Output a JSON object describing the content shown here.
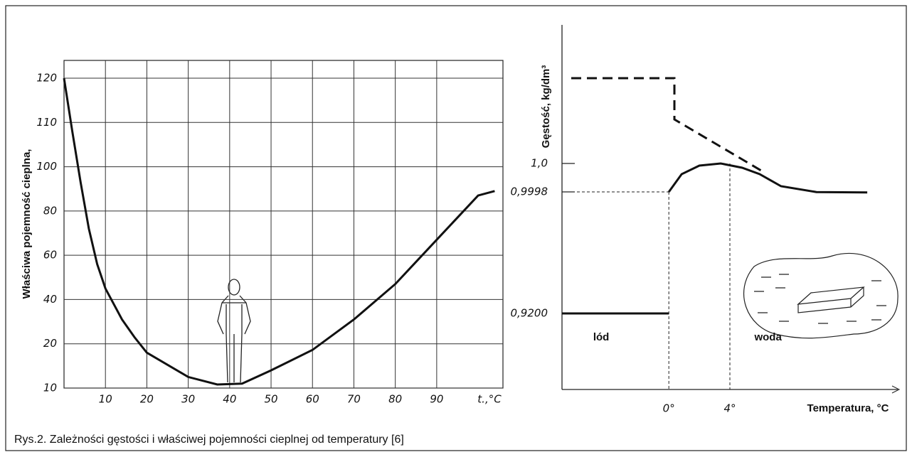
{
  "caption": "Rys.2. Zależności gęstości i właściwej pojemności cieplnej od temperatury [6]",
  "chart_data": [
    {
      "type": "line",
      "ylabel": "Właściwa pojemność cieplna,",
      "xlabel": "t.,°C",
      "x": [
        0,
        1,
        2,
        4,
        6,
        8,
        10,
        14,
        17,
        20,
        30,
        37,
        43,
        50,
        60,
        70,
        80,
        90,
        100,
        104
      ],
      "values": [
        120,
        114,
        108,
        93,
        72,
        56,
        45,
        31,
        23,
        18,
        12.5,
        10.8,
        11,
        14,
        18.6,
        31,
        47,
        67,
        87,
        89
      ],
      "color": "#111111",
      "xlim": [
        0,
        106
      ],
      "ylim": [
        10,
        120
      ],
      "xticks": [
        10,
        20,
        30,
        40,
        50,
        60,
        70,
        80,
        90
      ],
      "yticks": [
        10,
        20,
        40,
        60,
        80,
        100,
        110,
        120
      ],
      "grid": true
    },
    {
      "type": "line",
      "ylabel": "Gęstość, kg/dm³",
      "xlabel": "Temperatura, °C",
      "xlim": [
        -7,
        15
      ],
      "xticks": [
        {
          "value": 0,
          "label": "0°"
        },
        {
          "value": 4,
          "label": "4°"
        }
      ],
      "yticks": [
        {
          "value": 0.92,
          "label": "0,9200"
        },
        {
          "value": 0.9998,
          "label": "0,9998"
        },
        {
          "value": 1.0,
          "label": "1,0"
        }
      ],
      "series": [
        {
          "name": "lód",
          "color": "#111111",
          "x": [
            -7,
            0
          ],
          "values": [
            0.92,
            0.92
          ]
        },
        {
          "name": "woda",
          "color": "#111111",
          "x": [
            0,
            0.84,
            2.0,
            3.4,
            4.8,
            5.95,
            7.35,
            9.67,
            13.0
          ],
          "values": [
            0.9998,
            0.999925,
            0.999985,
            1.0,
            0.99997,
            0.999925,
            0.99984,
            0.9997,
            0.999485
          ]
        }
      ]
    }
  ]
}
